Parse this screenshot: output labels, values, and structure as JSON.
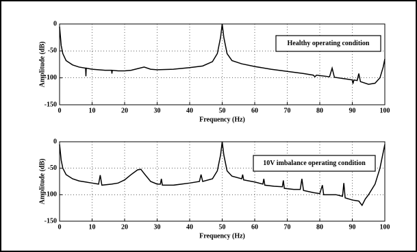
{
  "chart_data": [
    {
      "type": "line",
      "xlabel": "Frequency (Hz)",
      "ylabel": "Amplitude (dB)",
      "annotation": "Healthy operating condition",
      "xlim": [
        0,
        100
      ],
      "ylim": [
        -150,
        0
      ],
      "xticks": [
        0,
        10,
        20,
        30,
        40,
        50,
        60,
        70,
        80,
        90,
        100
      ],
      "yticks": [
        0,
        -50,
        -100,
        -150
      ],
      "grid": true,
      "color": "#000000",
      "x": [
        0,
        0.5,
        1,
        2,
        4,
        6,
        8,
        8.1,
        8.2,
        10,
        14,
        16,
        16.1,
        16.2,
        18,
        20,
        22,
        24,
        26,
        28,
        30,
        35,
        40,
        44,
        47,
        48.5,
        49.5,
        50,
        50.5,
        51.5,
        53,
        56,
        60,
        65,
        70,
        75,
        78,
        78.5,
        79,
        83,
        83.8,
        84.5,
        88,
        90,
        90.2,
        90.5,
        91.5,
        92,
        92.5,
        95,
        97,
        98.5,
        99.5,
        100
      ],
      "values": [
        -5,
        -40,
        -55,
        -68,
        -76,
        -80,
        -82,
        -97,
        -82,
        -84,
        -86,
        -86,
        -92,
        -86,
        -87,
        -87,
        -86,
        -83,
        -80,
        -84,
        -85,
        -84,
        -81,
        -78,
        -70,
        -55,
        -25,
        0,
        -25,
        -55,
        -68,
        -74,
        -79,
        -84,
        -88,
        -92,
        -95,
        -98,
        -95,
        -98,
        -82,
        -99,
        -102,
        -104,
        -111,
        -104,
        -105,
        -92,
        -107,
        -112,
        -110,
        -100,
        -80,
        -65
      ]
    },
    {
      "type": "line",
      "xlabel": "Frequency (Hz)",
      "ylabel": "Amplitude (dB)",
      "annotation": "10V imbalance operating condition",
      "xlim": [
        0,
        100
      ],
      "ylim": [
        -150,
        0
      ],
      "xticks": [
        0,
        10,
        20,
        30,
        40,
        50,
        60,
        70,
        80,
        90,
        100
      ],
      "yticks": [
        0,
        -50,
        -100,
        -150
      ],
      "grid": true,
      "color": "#000000",
      "x": [
        0,
        0.5,
        1,
        2,
        4,
        6,
        8,
        10,
        12,
        12.5,
        13,
        16,
        18,
        19,
        20,
        22,
        24,
        25,
        26,
        28,
        30,
        31,
        31.3,
        31.6,
        35,
        40,
        43,
        43.5,
        44,
        47,
        48.5,
        49.5,
        50,
        50.5,
        51.5,
        53,
        56,
        56.3,
        56.6,
        60,
        62.5,
        62.8,
        63.1,
        66,
        68.5,
        68.8,
        69.1,
        72,
        74,
        74.5,
        75,
        78,
        80,
        80.8,
        81.2,
        85,
        87,
        87.4,
        87.8,
        90,
        92,
        93,
        94,
        95,
        97,
        98.5,
        99.5,
        100
      ],
      "values": [
        -5,
        -35,
        -50,
        -62,
        -70,
        -74,
        -76,
        -78,
        -80,
        -63,
        -82,
        -80,
        -78,
        -75,
        -72,
        -62,
        -53,
        -52,
        -60,
        -75,
        -80,
        -80,
        -70,
        -82,
        -82,
        -78,
        -75,
        -62,
        -75,
        -70,
        -55,
        -25,
        0,
        -25,
        -55,
        -65,
        -70,
        -62,
        -72,
        -76,
        -80,
        -70,
        -82,
        -84,
        -85,
        -73,
        -88,
        -90,
        -90,
        -70,
        -92,
        -96,
        -98,
        -82,
        -100,
        -100,
        -103,
        -78,
        -106,
        -110,
        -112,
        -120,
        -108,
        -100,
        -80,
        -50,
        -20,
        -5
      ]
    }
  ]
}
